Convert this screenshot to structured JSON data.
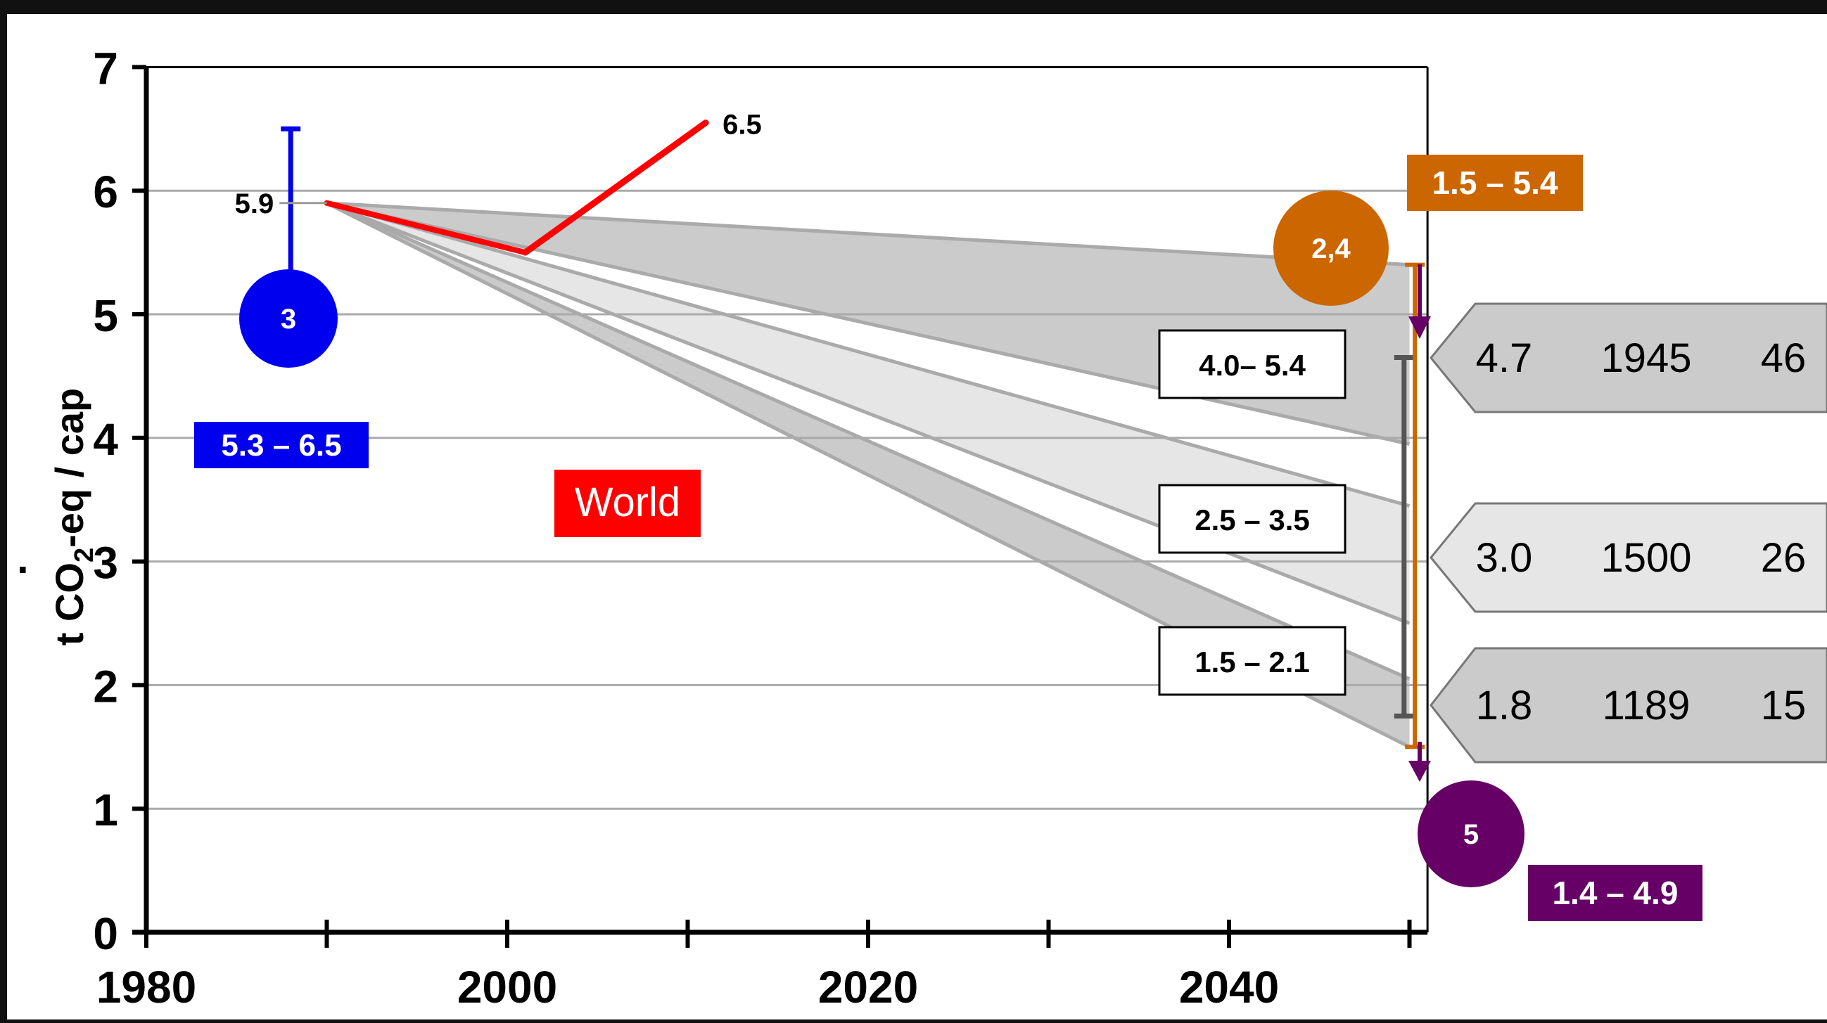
{
  "colors": {
    "background": "#111111",
    "canvas": "#ffffff",
    "band_dark": "#cbcbcb",
    "band_light": "#e6e6e6",
    "band_edge": "#aaaaaa",
    "grid": "#aaaaaa",
    "world": "#ff0000",
    "blue": "#0000ee",
    "orange": "#cc6600",
    "purple": "#660066",
    "gray_bar": "#555555"
  },
  "chart_data": {
    "type": "area",
    "ylabel_main": "t CO",
    "ylabel_sub": "2",
    "ylabel_rest": "-eq / cap",
    "ylabel_dot": ".",
    "xlim": [
      1980,
      2051
    ],
    "ylim": [
      0,
      7
    ],
    "x_ticks": [
      "1980",
      "2000",
      "2020",
      "2040"
    ],
    "x_tick_values": [
      1980,
      2000,
      2020,
      2040
    ],
    "y_ticks": [
      "0",
      "1",
      "2",
      "3",
      "4",
      "5",
      "6",
      "7"
    ],
    "y_tick_values": [
      0,
      1,
      2,
      3,
      4,
      5,
      6,
      7
    ],
    "grid_y": [
      1,
      2,
      3,
      4,
      5,
      6
    ],
    "minor_x_ticks": [
      1990,
      2010,
      2030,
      2050
    ],
    "origin": {
      "x": 1990,
      "y": 5.9
    },
    "bands": [
      {
        "upper": 5.4,
        "lower": 3.95,
        "shade": "dark"
      },
      {
        "upper": 3.45,
        "lower": 2.5,
        "shade": "light"
      },
      {
        "upper": 2.05,
        "lower": 1.5,
        "shade": "dark"
      }
    ],
    "world_series": {
      "name": "World",
      "hist_x": [
        1990,
        2001
      ],
      "hist_y": [
        5.9,
        5.5
      ],
      "proj_x": [
        2001,
        2011
      ],
      "proj_y": [
        5.5,
        6.55
      ],
      "end_label": "6.5"
    },
    "error_bar_1990": {
      "x": 1988,
      "low": 5.3,
      "high": 6.5,
      "label": "5.9",
      "range_label": "5.3 – 6.5",
      "circle": "3"
    },
    "range_2050": {
      "x": 2050.3,
      "low": 1.5,
      "high": 5.4,
      "label": "1.5 – 5.4",
      "circle": "2,4"
    },
    "range_purple": {
      "label": "1.4 – 4.9",
      "circle": "5"
    },
    "gray_bar": {
      "x": 2049.7,
      "low": 1.75,
      "high": 4.65
    },
    "band_labels": [
      "4.0– 5.4",
      "2.5 – 3.5",
      "1.5 – 2.1"
    ],
    "callouts": [
      {
        "values": [
          "4.7",
          "1945",
          "46"
        ],
        "shade": "dark"
      },
      {
        "values": [
          "3.0",
          "1500",
          "26"
        ],
        "shade": "light"
      },
      {
        "values": [
          "1.8",
          "1189",
          "15"
        ],
        "shade": "dark"
      }
    ]
  }
}
